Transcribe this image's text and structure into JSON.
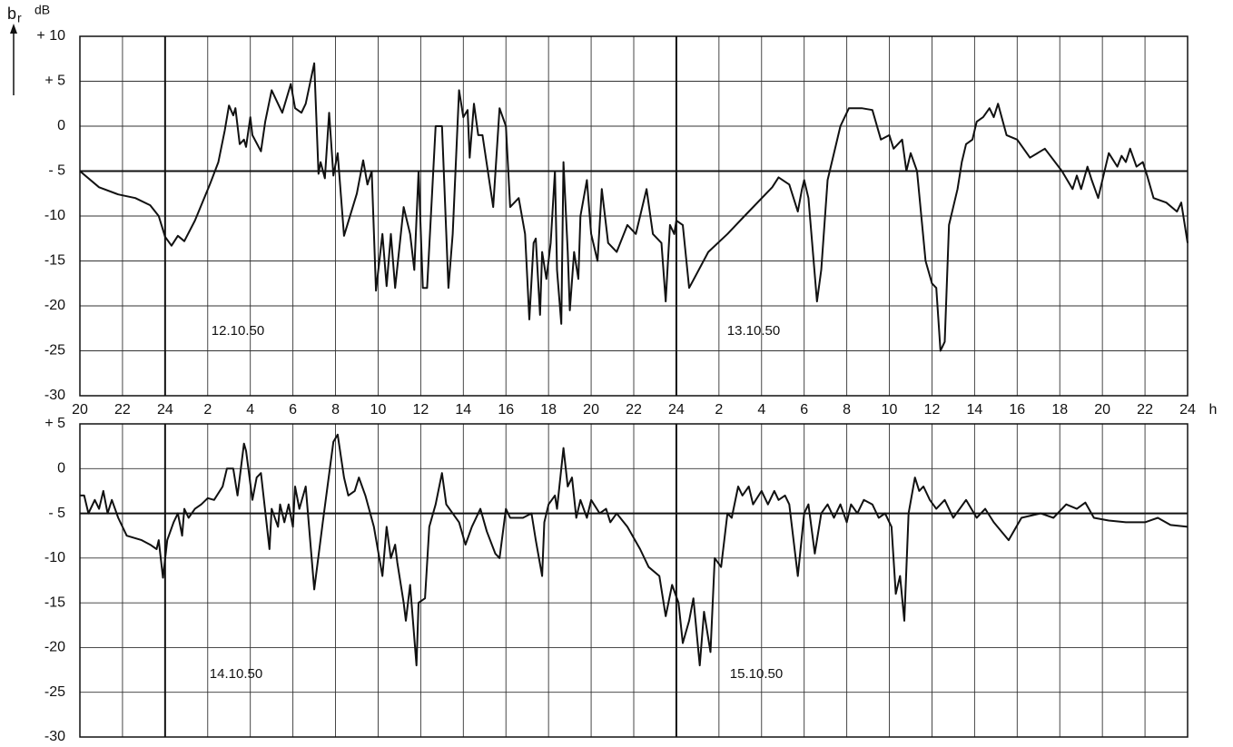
{
  "chart_data": [
    {
      "type": "line",
      "y_label": "b",
      "y_label_sub": "r",
      "y_unit": "dB",
      "x_unit": "h",
      "xlim": [
        20,
        72
      ],
      "ylim": [
        -30,
        10
      ],
      "grid": true,
      "hlines": [
        -5
      ],
      "vlines": [
        24,
        48
      ],
      "xticks": [
        20,
        22,
        24,
        {
          "value": 26,
          "label": "2"
        },
        {
          "value": 28,
          "label": "4"
        },
        {
          "value": 30,
          "label": "6"
        },
        {
          "value": 32,
          "label": "8"
        },
        {
          "value": 34,
          "label": "10"
        },
        {
          "value": 36,
          "label": "12"
        },
        {
          "value": 38,
          "label": "14"
        },
        {
          "value": 40,
          "label": "16"
        },
        {
          "value": 42,
          "label": "18"
        },
        {
          "value": 44,
          "label": "20"
        },
        {
          "value": 46,
          "label": "22"
        },
        {
          "value": 48,
          "label": "24"
        },
        {
          "value": 50,
          "label": "2"
        },
        {
          "value": 52,
          "label": "4"
        },
        {
          "value": 54,
          "label": "6"
        },
        {
          "value": 56,
          "label": "8"
        },
        {
          "value": 58,
          "label": "10"
        },
        {
          "value": 60,
          "label": "12"
        },
        {
          "value": 62,
          "label": "14"
        },
        {
          "value": 64,
          "label": "16"
        },
        {
          "value": 66,
          "label": "18"
        },
        {
          "value": 68,
          "label": "20"
        },
        {
          "value": 70,
          "label": "22"
        },
        {
          "value": 72,
          "label": "24"
        }
      ],
      "yticks": [
        {
          "value": 10,
          "label": "+ 10"
        },
        {
          "value": 5,
          "label": "+ 5"
        },
        0,
        {
          "value": -5,
          "label": "- 5"
        },
        -10,
        -15,
        -20,
        -25,
        -30
      ],
      "annotations": [
        "12.10.50",
        "13.10.50"
      ],
      "x": [
        20.0,
        20.9,
        21.8,
        22.6,
        23.3,
        23.7,
        24.0,
        24.3,
        24.6,
        24.9,
        25.4,
        26.1,
        26.5,
        26.8,
        27.0,
        27.2,
        27.3,
        27.5,
        27.7,
        27.8,
        28.0,
        28.1,
        28.5,
        28.7,
        29.0,
        29.3,
        29.5,
        29.9,
        30.1,
        30.4,
        30.6,
        31.0,
        31.2,
        31.3,
        31.5,
        31.7,
        31.9,
        32.1,
        32.4,
        33.0,
        33.3,
        33.5,
        33.7,
        33.9,
        34.2,
        34.4,
        34.6,
        34.8,
        35.2,
        35.5,
        35.7,
        35.9,
        36.1,
        36.3,
        36.7,
        37.0,
        37.3,
        37.5,
        37.8,
        38.0,
        38.2,
        38.3,
        38.5,
        38.7,
        38.9,
        39.4,
        39.7,
        40.0,
        40.2,
        40.6,
        40.9,
        41.1,
        41.3,
        41.4,
        41.6,
        41.7,
        41.9,
        42.1,
        42.3,
        42.4,
        42.6,
        42.7,
        42.9,
        43.0,
        43.2,
        43.4,
        43.5,
        43.8,
        44.0,
        44.3,
        44.5,
        44.8,
        45.2,
        45.7,
        46.1,
        46.6,
        46.9,
        47.3,
        47.5,
        47.7,
        47.9,
        48.0,
        48.3,
        48.6,
        49.5,
        50.4,
        51.2,
        52.5,
        52.8,
        53.3,
        53.7,
        53.9,
        54.0,
        54.2,
        54.6,
        54.8,
        55.1,
        55.7,
        56.1,
        56.7,
        57.2,
        57.6,
        58.0,
        58.2,
        58.6,
        58.8,
        59.0,
        59.3,
        59.7,
        60.0,
        60.2,
        60.4,
        60.6,
        60.8,
        61.2,
        61.4,
        61.6,
        61.9,
        62.1,
        62.4,
        62.7,
        62.9,
        63.1,
        63.5,
        64.0,
        64.6,
        65.3,
        66.1,
        66.6,
        66.8,
        67.0,
        67.3,
        67.5,
        67.8,
        68.3,
        68.7,
        68.9,
        69.1,
        69.3,
        69.6,
        69.9,
        70.1,
        70.4,
        71.0,
        71.5,
        71.7,
        72.0
      ],
      "series": [
        {
          "color": "#111111",
          "values": [
            -5,
            -6.8,
            -7.6,
            -8,
            -8.8,
            -10,
            -12.3,
            -13.3,
            -12.2,
            -12.8,
            -10.5,
            -6.5,
            -4,
            -0.5,
            2.3,
            1.2,
            2,
            -2,
            -1.5,
            -2.3,
            1,
            -1,
            -2.8,
            0.5,
            4,
            2.5,
            1.5,
            4.7,
            2,
            1.5,
            2.5,
            7,
            -5.3,
            -4,
            -5.8,
            1.5,
            -5.5,
            -3,
            -12.2,
            -7.5,
            -3.8,
            -6.5,
            -5,
            -18.3,
            -12,
            -17.8,
            -12,
            -18,
            -9,
            -12,
            -16,
            -5,
            -18,
            -18,
            0,
            0,
            -18,
            -12,
            4,
            1,
            1.8,
            -3.5,
            2.5,
            -1,
            -1,
            -9,
            2,
            0,
            -9,
            -8,
            -12,
            -21.5,
            -13,
            -12.5,
            -21,
            -14,
            -17,
            -13,
            -5,
            -16,
            -22,
            -4,
            -14,
            -20.5,
            -14,
            -17,
            -10,
            -6,
            -12,
            -15,
            -7,
            -13,
            -14,
            -11,
            -12,
            -7,
            -12,
            -13,
            -19.5,
            -11,
            -12,
            -10.5,
            -11,
            -18,
            -14,
            -12,
            -10,
            -6.8,
            -5.7,
            -6.5,
            -9.5,
            -7,
            -6,
            -8,
            -19.5,
            -16,
            -6,
            0,
            2,
            2,
            1.8,
            -1.5,
            -1,
            -2.5,
            -1.5,
            -5,
            -3,
            -5,
            -15,
            -17.5,
            -18,
            -25,
            -24,
            -11,
            -7,
            -4,
            -2,
            -1.5,
            0.5,
            1,
            2,
            1,
            2.5,
            -1,
            -1.5,
            -3.5,
            -2.5,
            -5,
            -7,
            -5.5,
            -7,
            -4.5,
            -6,
            -8,
            -3,
            -4.5,
            -3.3,
            -4,
            -2.5,
            -4.5,
            -4,
            -5.5,
            -8,
            -8.5,
            -9.5,
            -8.5,
            -13
          ]
        }
      ]
    },
    {
      "type": "line",
      "xlim": [
        20,
        72
      ],
      "ylim": [
        -30,
        5
      ],
      "grid": true,
      "hlines": [
        -5
      ],
      "vlines": [
        24,
        48
      ],
      "xgrid": [
        20,
        22,
        24,
        26,
        28,
        30,
        32,
        34,
        36,
        38,
        40,
        42,
        44,
        46,
        48,
        50,
        52,
        54,
        56,
        58,
        60,
        62,
        64,
        66,
        68,
        70,
        72
      ],
      "yticks": [
        {
          "value": 5,
          "label": "+ 5"
        },
        0,
        {
          "value": -5,
          "label": "- 5"
        },
        -10,
        -15,
        -20,
        -25,
        -30
      ],
      "annotations": [
        "14.10.50",
        "15.10.50"
      ],
      "x": [
        20.0,
        20.2,
        20.4,
        20.7,
        20.9,
        21.1,
        21.3,
        21.5,
        21.8,
        22.2,
        22.9,
        23.3,
        23.6,
        23.7,
        23.9,
        24.1,
        24.4,
        24.6,
        24.8,
        24.9,
        25.1,
        25.4,
        25.7,
        26.0,
        26.3,
        26.7,
        26.9,
        27.2,
        27.4,
        27.7,
        27.8,
        28.1,
        28.3,
        28.5,
        28.9,
        29.0,
        29.3,
        29.4,
        29.6,
        29.8,
        30.0,
        30.1,
        30.3,
        30.6,
        31.0,
        31.4,
        31.9,
        32.1,
        32.4,
        32.6,
        32.9,
        33.1,
        33.4,
        33.8,
        34.2,
        34.4,
        34.6,
        34.8,
        34.9,
        35.2,
        35.3,
        35.5,
        35.8,
        35.9,
        36.2,
        36.4,
        36.7,
        37.0,
        37.2,
        37.8,
        38.1,
        38.4,
        38.8,
        39.1,
        39.5,
        39.7,
        40.0,
        40.2,
        40.8,
        41.2,
        41.4,
        41.7,
        41.8,
        42.0,
        42.3,
        42.4,
        42.7,
        42.9,
        43.1,
        43.3,
        43.5,
        43.8,
        44.0,
        44.4,
        44.7,
        44.9,
        45.2,
        45.7,
        46.3,
        46.7,
        47.2,
        47.5,
        47.8,
        48.1,
        48.3,
        48.6,
        48.8,
        49.1,
        49.3,
        49.6,
        49.8,
        50.1,
        50.4,
        50.6,
        50.9,
        51.1,
        51.4,
        51.6,
        52.0,
        52.3,
        52.6,
        52.8,
        53.1,
        53.3,
        53.7,
        54.0,
        54.2,
        54.5,
        54.8,
        55.1,
        55.4,
        55.7,
        56.0,
        56.2,
        56.5,
        56.8,
        57.2,
        57.5,
        57.8,
        58.1,
        58.3,
        58.5,
        58.7,
        58.9,
        59.2,
        59.4,
        59.6,
        59.9,
        60.2,
        60.6,
        61.0,
        61.6,
        62.1,
        62.5,
        62.9,
        63.6,
        64.2,
        65.1,
        65.7,
        66.3,
        66.8,
        67.2,
        67.6,
        68.3,
        69.1,
        70.0,
        70.6,
        71.2,
        72.0
      ],
      "series": [
        {
          "color": "#111111",
          "values": [
            -3,
            -3,
            -5,
            -3.5,
            -4.5,
            -2.5,
            -5,
            -3.5,
            -5.5,
            -7.5,
            -8,
            -8.5,
            -9,
            -8,
            -12.2,
            -8,
            -6,
            -5,
            -7.5,
            -4.5,
            -5.5,
            -4.5,
            -4,
            -3.3,
            -3.5,
            -2,
            0,
            0,
            -3,
            2.8,
            2,
            -3.5,
            -1,
            -0.5,
            -9,
            -4.5,
            -6.5,
            -4,
            -6,
            -4,
            -6.5,
            -2,
            -4.5,
            -2,
            -13.5,
            -6,
            3,
            3.8,
            -1,
            -3,
            -2.5,
            -1,
            -3,
            -6.5,
            -12,
            -6.5,
            -10,
            -8.5,
            -10.5,
            -15,
            -17,
            -13,
            -22,
            -15,
            -14.5,
            -6.5,
            -4,
            -0.5,
            -4,
            -6,
            -8.5,
            -6.5,
            -4.5,
            -7,
            -9.5,
            -10,
            -4.5,
            -5.5,
            -5.5,
            -5,
            -8,
            -12,
            -6,
            -4,
            -3,
            -4.5,
            2.3,
            -2,
            -1,
            -5.5,
            -3.5,
            -5.5,
            -3.5,
            -5,
            -4.5,
            -6,
            -5,
            -6.5,
            -9,
            -11,
            -12,
            -16.5,
            -13,
            -15,
            -19.5,
            -17,
            -14.5,
            -22,
            -16,
            -20.5,
            -10,
            -11,
            -5,
            -5.5,
            -2,
            -3,
            -2,
            -4,
            -2.5,
            -4,
            -2.5,
            -3.5,
            -3,
            -4,
            -12,
            -5,
            -4,
            -9.5,
            -5,
            -4,
            -5.5,
            -4,
            -6,
            -4,
            -5,
            -3.5,
            -4,
            -5.5,
            -5,
            -6.5,
            -14,
            -12,
            -17,
            -5,
            -1,
            -2.5,
            -2,
            -3.5,
            -4.5,
            -3.5,
            -5.5,
            -3.5,
            -5.5,
            -4.5,
            -6,
            -8,
            -5.5,
            -5,
            -5.5,
            -4,
            -4.5,
            -3.8,
            -5.5,
            -5.8,
            -6,
            -6,
            -5.5,
            -6.3,
            -6.5
          ]
        }
      ]
    }
  ]
}
